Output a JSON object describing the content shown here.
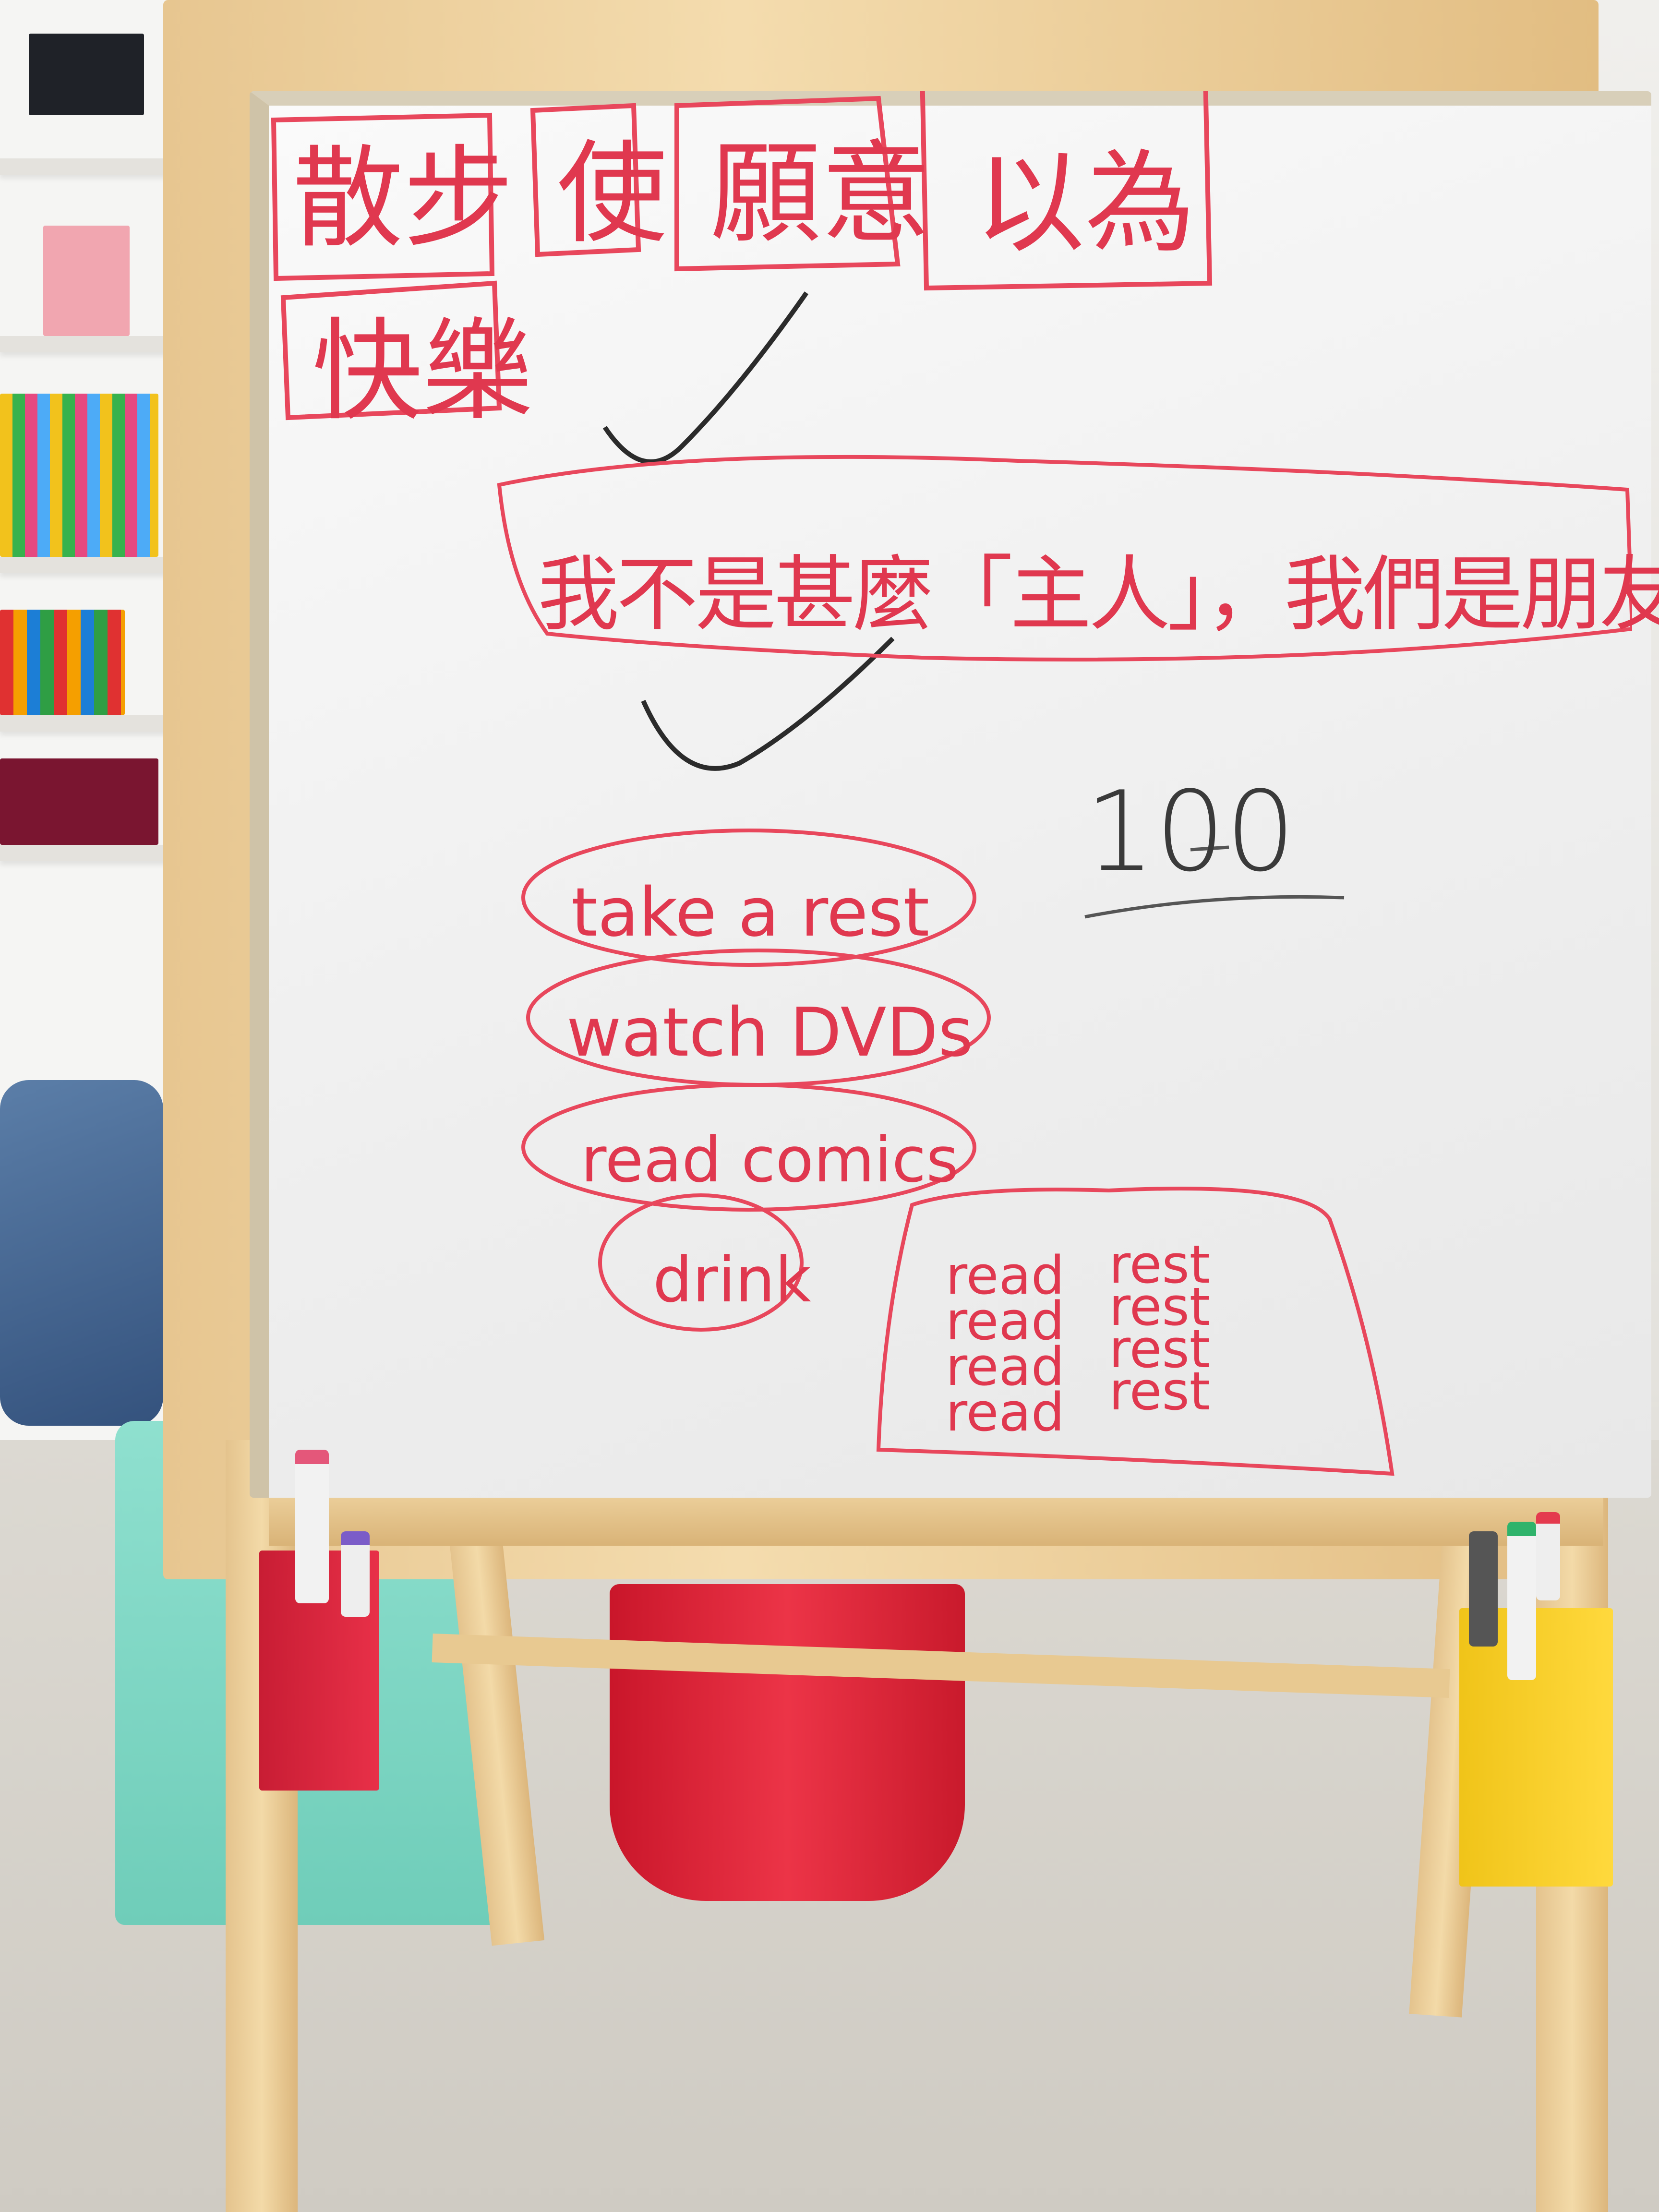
{
  "board": {
    "cjk_words": [
      "散步",
      "使",
      "願意",
      "以為",
      "快樂"
    ],
    "sentence": "我不是甚麼「主人」，我們是朋友",
    "phrases": [
      "take a rest",
      "watch DVDs",
      "read comics",
      "drink"
    ],
    "practice_read": [
      "read",
      "read",
      "read",
      "read"
    ],
    "practice_rest": [
      "rest",
      "rest",
      "rest",
      "rest"
    ],
    "score": "100"
  },
  "colors": {
    "marker_red": "#e0384f",
    "marker_black": "#333333",
    "frame_wood": "#f0d4a0",
    "board_white": "#f7f7f7"
  }
}
